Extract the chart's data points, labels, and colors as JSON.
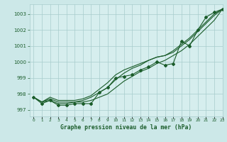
{
  "title": "Graphe pression niveau de la mer (hPa)",
  "bg_color": "#cce8e8",
  "plot_bg_color": "#d6eeee",
  "grid_color": "#a8cccc",
  "line_color": "#1a5c2a",
  "text_color": "#1a5c2a",
  "xlim": [
    -0.5,
    23
  ],
  "ylim": [
    996.6,
    1003.6
  ],
  "yticks": [
    997,
    998,
    999,
    1000,
    1001,
    1002,
    1003
  ],
  "xtick_labels": [
    "0",
    "1",
    "2",
    "3",
    "4",
    "5",
    "6",
    "7",
    "8",
    "9",
    "10",
    "11",
    "12",
    "13",
    "14",
    "15",
    "16",
    "17",
    "18",
    "19",
    "20",
    "21",
    "22",
    "23"
  ],
  "x": [
    0,
    1,
    2,
    3,
    4,
    5,
    6,
    7,
    8,
    9,
    10,
    11,
    12,
    13,
    14,
    15,
    16,
    17,
    18,
    19,
    20,
    21,
    22,
    23
  ],
  "marker_line_y": [
    997.8,
    997.4,
    997.6,
    997.3,
    997.3,
    997.4,
    997.4,
    997.4,
    998.1,
    998.4,
    999.0,
    999.1,
    999.2,
    999.5,
    999.7,
    1000.0,
    999.8,
    999.9,
    1001.3,
    1001.0,
    1002.0,
    1002.8,
    1003.1,
    1003.3
  ],
  "line1": [
    997.8,
    997.5,
    997.6,
    997.4,
    997.4,
    997.5,
    997.5,
    997.6,
    997.8,
    998.0,
    998.4,
    998.8,
    999.1,
    999.4,
    999.6,
    999.9,
    1000.1,
    1000.4,
    1000.7,
    1001.1,
    1001.6,
    1002.1,
    1002.6,
    1003.3
  ],
  "line2": [
    997.8,
    997.5,
    997.7,
    997.5,
    997.5,
    997.5,
    997.6,
    997.8,
    998.1,
    998.4,
    998.9,
    999.3,
    999.6,
    999.8,
    1000.1,
    1000.3,
    1000.4,
    1000.7,
    1001.1,
    1001.5,
    1002.0,
    1002.5,
    1003.0,
    1003.3
  ],
  "line3": [
    997.8,
    997.5,
    997.8,
    997.6,
    997.6,
    997.6,
    997.7,
    997.9,
    998.3,
    998.7,
    999.2,
    999.5,
    999.7,
    999.9,
    1000.1,
    1000.3,
    1000.4,
    1000.6,
    1001.0,
    1001.4,
    1001.9,
    1002.4,
    1002.9,
    1003.3
  ]
}
